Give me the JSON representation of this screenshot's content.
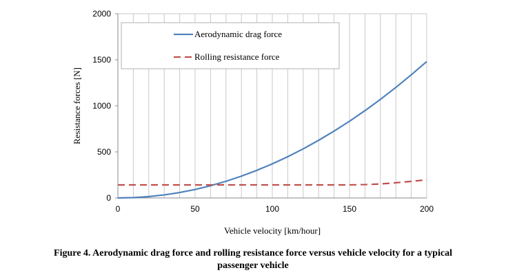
{
  "chart_data": {
    "type": "line",
    "title": "",
    "xlabel": "Vehicle velocity [km/hour]",
    "ylabel": "Resistance forces [N]",
    "xlim": [
      0,
      200
    ],
    "ylim": [
      0,
      2000
    ],
    "x_ticks": [
      "0",
      "50",
      "100",
      "150",
      "200"
    ],
    "y_ticks": [
      "0",
      "500",
      "1000",
      "1500",
      "2000"
    ],
    "grid": "vertical",
    "legend_position": "top-left",
    "x": [
      0,
      10,
      20,
      30,
      40,
      50,
      60,
      70,
      80,
      90,
      100,
      110,
      120,
      130,
      140,
      150,
      160,
      170,
      180,
      190,
      200
    ],
    "series": [
      {
        "name": "Aerodynamic drag force",
        "color": "#4f81bd",
        "style": "solid",
        "values": [
          0,
          4,
          15,
          33,
          59,
          92,
          133,
          181,
          237,
          300,
          370,
          448,
          533,
          626,
          726,
          833,
          948,
          1070,
          1200,
          1337,
          1481
        ]
      },
      {
        "name": "Rolling resistance force",
        "color": "#c0504d",
        "style": "dashed",
        "values": [
          142,
          142,
          142,
          142,
          142,
          142,
          142,
          142,
          142,
          142,
          142,
          142,
          142,
          142,
          142,
          142,
          145,
          152,
          165,
          180,
          197
        ]
      }
    ]
  },
  "caption": {
    "line1": "Figure 4. Aerodynamic drag force and rolling resistance force versus vehicle velocity for a typical",
    "line2": "passenger vehicle"
  }
}
